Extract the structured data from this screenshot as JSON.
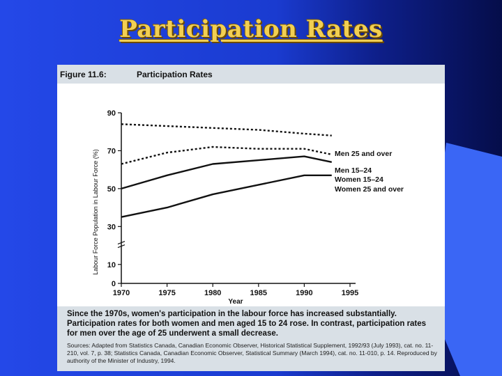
{
  "slide": {
    "title": "Participation Rates",
    "colors": {
      "background": "#1a3bd0",
      "title": "#f2cf52",
      "wedge": "#3a66f5"
    }
  },
  "figure": {
    "number": "Figure 11.6:",
    "title": "Participation Rates",
    "caption": "Since the 1970s, women's participation in the labour force has increased substantially. Participation rates for both women and men aged 15 to 24 rose. In contrast, participation rates for men over the age of 25 underwent a small decrease.",
    "source": "Sources: Adapted from Statistics Canada, Canadian Economic Observer, Historical Statistical Supplement, 1992/93 (July 1993), cat. no. 11-210, vol. 7, p. 38; Statistics Canada, Canadian Economic Observer, Statistical Summary (March 1994), cat. no. 11-010, p. 14. Reproduced by authority of the Minister of Industry, 1994."
  },
  "chart_data": {
    "type": "line",
    "title": "",
    "xlabel": "Year",
    "ylabel": "Labour Force Population in Labour Force (%)",
    "xlim": [
      1970,
      1995
    ],
    "ylim": [
      0,
      90
    ],
    "x_ticks": [
      1970,
      1975,
      1980,
      1985,
      1990,
      1995
    ],
    "y_ticks": [
      0,
      10,
      30,
      50,
      70,
      90
    ],
    "grid": false,
    "legend": "right",
    "series": [
      {
        "name": "Men 25 and over",
        "style": "dotted",
        "color": "#111111",
        "x": [
          1970,
          1975,
          1980,
          1985,
          1990,
          1993
        ],
        "y": [
          84,
          83,
          82,
          81,
          79,
          78
        ]
      },
      {
        "name": "Men 15–24",
        "style": "dotted",
        "color": "#111111",
        "x": [
          1970,
          1975,
          1980,
          1985,
          1990,
          1993
        ],
        "y": [
          63,
          69,
          72,
          71,
          71,
          68
        ]
      },
      {
        "name": "Women 15–24",
        "style": "solid",
        "color": "#111111",
        "x": [
          1970,
          1975,
          1980,
          1985,
          1990,
          1993
        ],
        "y": [
          50,
          57,
          63,
          65,
          67,
          64
        ]
      },
      {
        "name": "Women 25 and over",
        "style": "solid",
        "color": "#111111",
        "x": [
          1970,
          1975,
          1980,
          1985,
          1990,
          1993
        ],
        "y": [
          35,
          40,
          47,
          52,
          57,
          57
        ]
      }
    ]
  }
}
